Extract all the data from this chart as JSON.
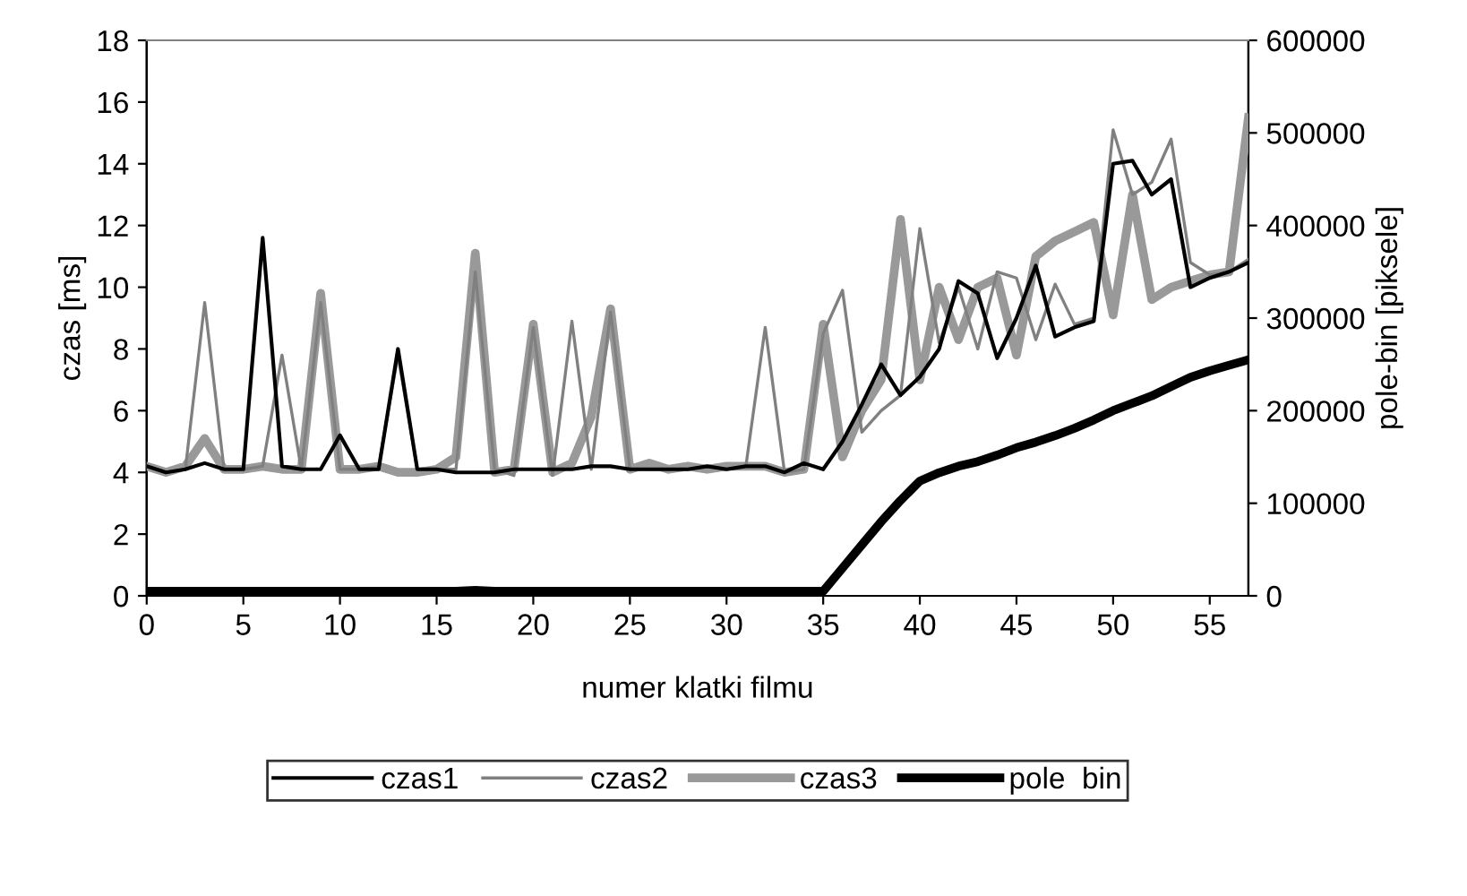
{
  "chart_data": {
    "type": "line",
    "xlabel": "numer klatki filmu",
    "ylabel": "czas [ms]",
    "y2label": "pole-bin [piksele]",
    "x": [
      0,
      1,
      2,
      3,
      4,
      5,
      6,
      7,
      8,
      9,
      10,
      11,
      12,
      13,
      14,
      15,
      16,
      17,
      18,
      19,
      20,
      21,
      22,
      23,
      24,
      25,
      26,
      27,
      28,
      29,
      30,
      31,
      32,
      33,
      34,
      35,
      36,
      37,
      38,
      39,
      40,
      41,
      42,
      43,
      44,
      45,
      46,
      47,
      48,
      49,
      50,
      51,
      52,
      53,
      54,
      55,
      56,
      57
    ],
    "xlim": [
      0,
      57
    ],
    "xticks": [
      0,
      5,
      10,
      15,
      20,
      25,
      30,
      35,
      40,
      45,
      50,
      55
    ],
    "ylim": [
      0,
      18
    ],
    "yticks": [
      0,
      2,
      4,
      6,
      8,
      10,
      12,
      14,
      16,
      18
    ],
    "y2lim": [
      0,
      600000
    ],
    "y2ticks": [
      0,
      100000,
      200000,
      300000,
      400000,
      500000,
      600000
    ],
    "legend": "bottom",
    "grid": false,
    "marker": "none",
    "line_style": "solid",
    "series": [
      {
        "name": "czas1",
        "color": "#000000",
        "values": [
          4.2,
          4.0,
          4.1,
          4.3,
          4.1,
          4.1,
          11.6,
          4.2,
          4.1,
          4.1,
          5.2,
          4.1,
          4.1,
          8.0,
          4.1,
          4.1,
          4.0,
          4.0,
          4.0,
          4.1,
          4.1,
          4.1,
          4.1,
          4.2,
          4.2,
          4.1,
          4.1,
          4.1,
          4.1,
          4.2,
          4.1,
          4.2,
          4.2,
          4.0,
          4.3,
          4.1,
          5.0,
          6.2,
          7.5,
          6.5,
          7.1,
          8.0,
          10.2,
          9.8,
          7.7,
          9.0,
          10.7,
          8.4,
          8.7,
          8.9,
          14.0,
          14.1,
          13.0,
          13.5,
          10.0,
          10.3,
          10.5,
          10.8
        ]
      },
      {
        "name": "czas2",
        "color": "#808080",
        "values": [
          4.2,
          4.0,
          4.1,
          9.5,
          4.1,
          4.1,
          4.2,
          7.8,
          4.1,
          9.5,
          4.1,
          4.1,
          4.2,
          7.8,
          4.1,
          4.1,
          4.1,
          10.5,
          4.1,
          3.9,
          8.7,
          3.9,
          8.9,
          4.1,
          9.2,
          4.1,
          4.1,
          4.1,
          4.1,
          4.2,
          4.1,
          4.2,
          8.7,
          4.0,
          4.1,
          8.5,
          9.9,
          5.3,
          6.0,
          6.5,
          11.9,
          8.2,
          10.0,
          8.0,
          10.5,
          10.3,
          8.3,
          10.1,
          8.8,
          9.0,
          15.1,
          13.0,
          13.4,
          14.8,
          10.8,
          10.4,
          10.5,
          10.9
        ]
      },
      {
        "name": "czas3",
        "color": "#999999",
        "values": [
          4.2,
          4.0,
          4.2,
          5.1,
          4.1,
          4.1,
          4.2,
          4.1,
          4.1,
          9.8,
          4.1,
          4.1,
          4.2,
          4.0,
          4.0,
          4.1,
          4.5,
          11.1,
          4.0,
          4.1,
          8.8,
          4.0,
          4.3,
          5.8,
          9.3,
          4.1,
          4.3,
          4.1,
          4.2,
          4.1,
          4.2,
          4.2,
          4.2,
          4.0,
          4.1,
          8.8,
          4.5,
          6.0,
          7.0,
          12.2,
          7.0,
          10.0,
          8.3,
          10.0,
          10.3,
          7.8,
          11.0,
          11.5,
          11.8,
          12.1,
          9.1,
          13.0,
          9.6,
          10.0,
          10.2,
          10.4,
          10.5,
          15.5
        ]
      },
      {
        "name": "pole  bin",
        "color": "#000000",
        "axis": "y2",
        "values": [
          5000,
          5000,
          5000,
          5000,
          5000,
          5000,
          5000,
          5000,
          5000,
          5000,
          5000,
          5000,
          5000,
          5000,
          5000,
          5000,
          5000,
          6000,
          5000,
          5000,
          5000,
          5000,
          5000,
          5000,
          5000,
          5000,
          5000,
          5000,
          5000,
          5000,
          5000,
          5000,
          5000,
          5000,
          5000,
          5000,
          30000,
          55000,
          80000,
          103000,
          124000,
          133000,
          140000,
          145000,
          152000,
          160000,
          166000,
          173000,
          181000,
          190000,
          200000,
          208000,
          216000,
          226000,
          236000,
          243000,
          249000,
          255000
        ]
      }
    ]
  }
}
